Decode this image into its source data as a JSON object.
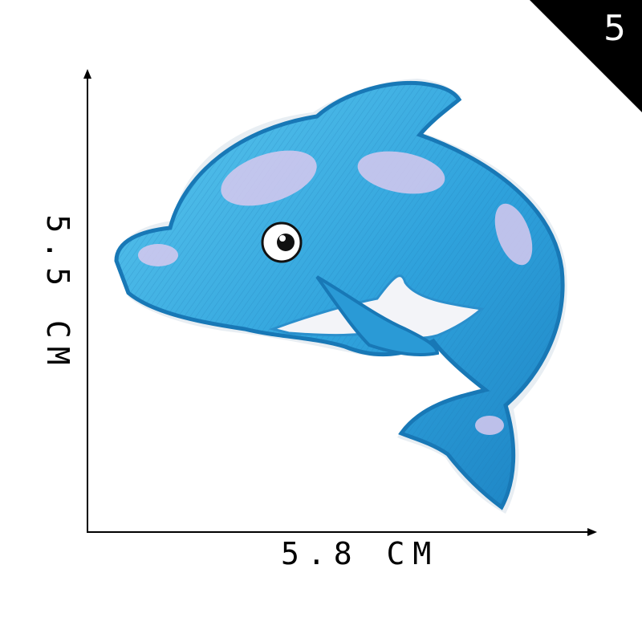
{
  "badge": {
    "number": "5",
    "color": "#000000"
  },
  "dimensions": {
    "width_label": "5.8 CM",
    "height_label": "5.5 CM"
  },
  "product": {
    "subject": "dolphin-embroidered-patch",
    "colors": {
      "body": "#2e9fd8",
      "edge": "#1b78b8",
      "shimmer": "#d9c8ee",
      "belly": "#f2f3f7"
    }
  }
}
